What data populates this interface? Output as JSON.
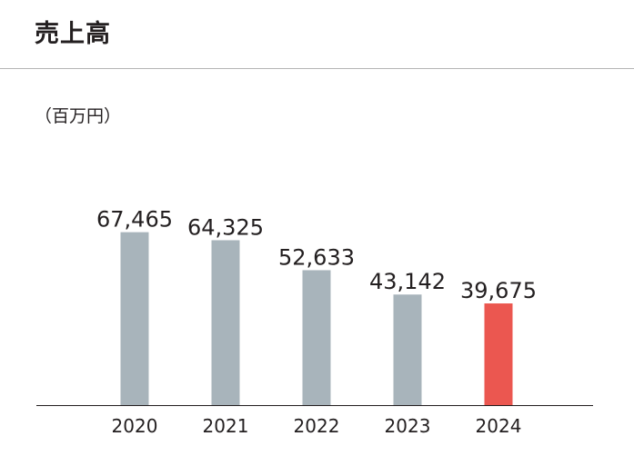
{
  "header": {
    "title": "売上高"
  },
  "chart_data": {
    "type": "bar",
    "title": "売上高",
    "unit_label": "（百万円）",
    "categories": [
      "2020",
      "2021",
      "2022",
      "2023",
      "2024"
    ],
    "values": [
      67465,
      64325,
      52633,
      43142,
      39675
    ],
    "value_labels": [
      "67,465",
      "64,325",
      "52,633",
      "43,142",
      "39,675"
    ],
    "ylim": [
      0,
      90000
    ],
    "grid": false,
    "legend": "none",
    "colors": {
      "bar": "#a8b4bb",
      "highlight_bar": "#eb5750",
      "axis": "#231f20"
    },
    "highlight_index": 4
  }
}
